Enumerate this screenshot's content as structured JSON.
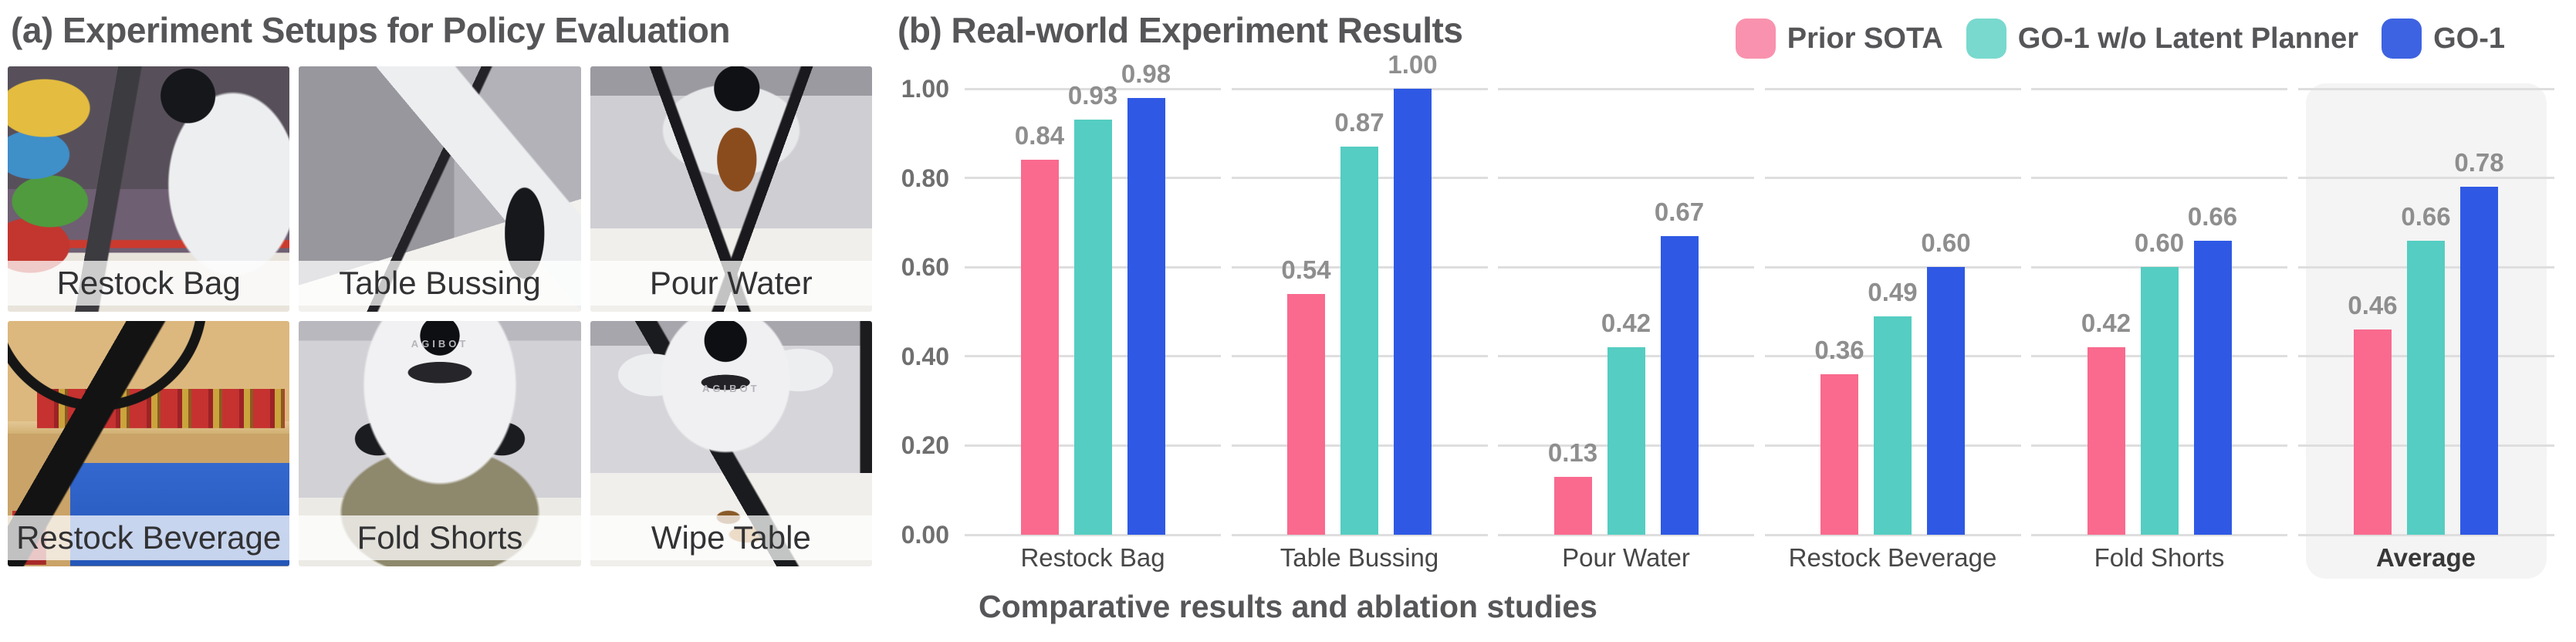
{
  "panel_a": {
    "title": "(a) Experiment Setups for Policy Evaluation",
    "robot_brand": "AGIBOT",
    "setups": [
      "Restock Bag",
      "Table Bussing",
      "Pour Water",
      "Restock Beverage",
      "Fold Shorts",
      "Wipe Table"
    ]
  },
  "chart_data": {
    "type": "bar",
    "title": "(b) Real-world Experiment Results",
    "caption": "Comparative results and ablation studies",
    "categories": [
      "Restock Bag",
      "Table Bussing",
      "Pour Water",
      "Restock Beverage",
      "Fold Shorts",
      "Average"
    ],
    "series": [
      {
        "name": "Prior SOTA",
        "color": "#F96A8E",
        "legend_color": "#F992AE",
        "values": [
          0.84,
          0.54,
          0.13,
          0.36,
          0.42,
          0.46
        ]
      },
      {
        "name": "GO-1 w/o Latent Planner",
        "color": "#55CDC2",
        "legend_color": "#79D9CE",
        "values": [
          0.93,
          0.87,
          0.42,
          0.49,
          0.6,
          0.66
        ]
      },
      {
        "name": "GO-1",
        "color": "#2F59E4",
        "legend_color": "#3D63E2",
        "values": [
          0.98,
          1.0,
          0.67,
          0.6,
          0.66,
          0.78
        ]
      }
    ],
    "ylim": [
      0,
      1
    ],
    "yticks": [
      "0.00",
      "0.20",
      "0.40",
      "0.60",
      "0.80",
      "1.00"
    ],
    "grid": true,
    "value_labels": true,
    "legend_position": "top-right",
    "highlight_category": "Average"
  }
}
